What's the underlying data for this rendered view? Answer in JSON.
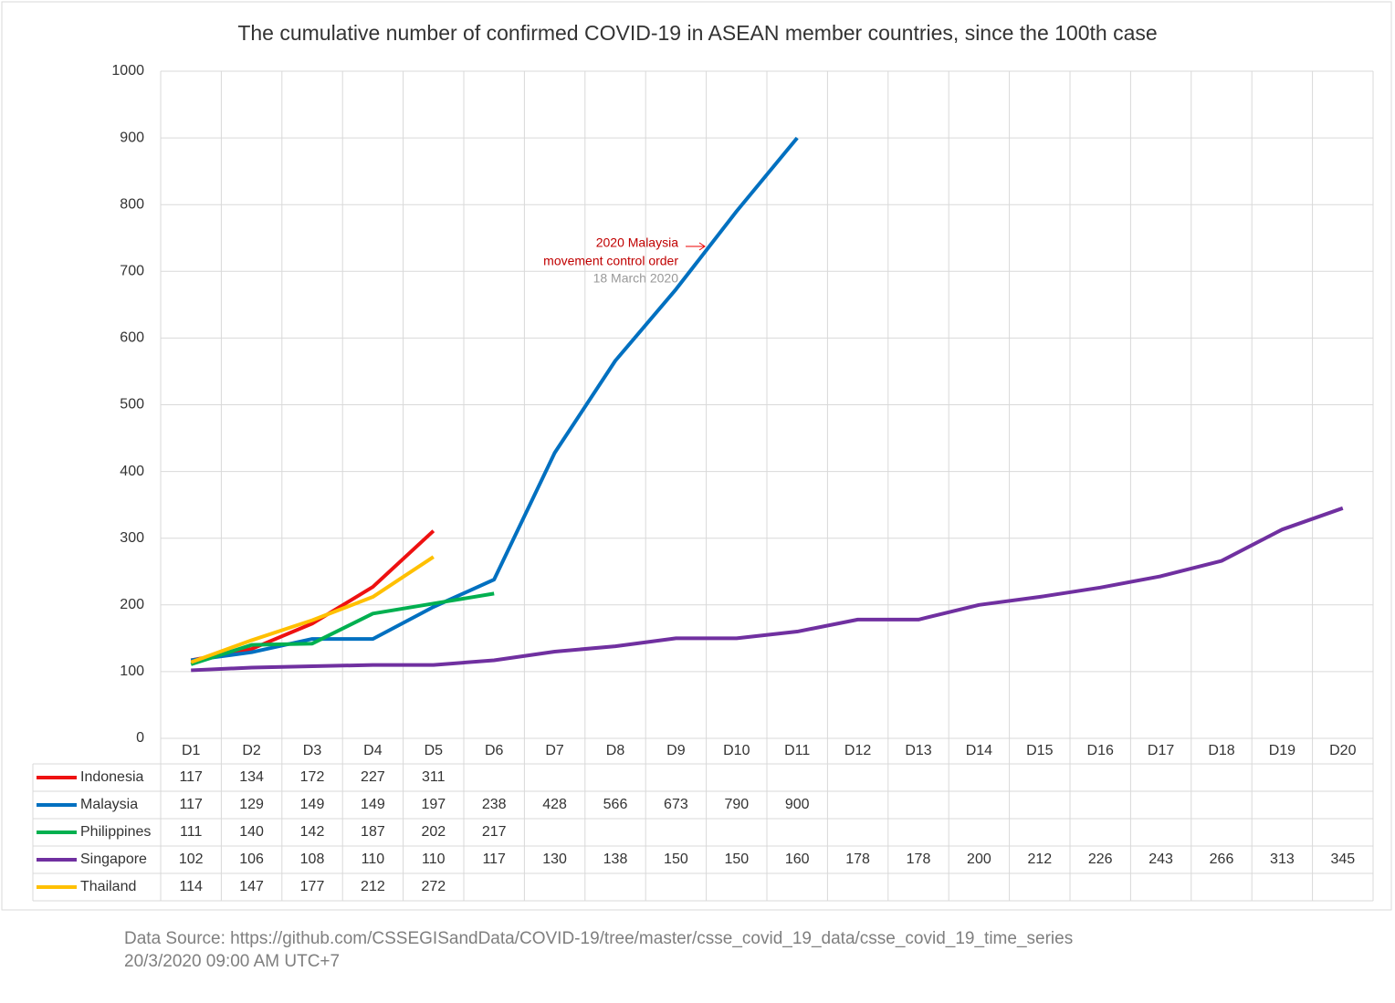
{
  "chart_data": {
    "type": "line",
    "title": "The cumulative number of confirmed COVID-19 in ASEAN member countries, since the 100th case",
    "categories": [
      "D1",
      "D2",
      "D3",
      "D4",
      "D5",
      "D6",
      "D7",
      "D8",
      "D9",
      "D10",
      "D11",
      "D12",
      "D13",
      "D14",
      "D15",
      "D16",
      "D17",
      "D18",
      "D19",
      "D20"
    ],
    "series": [
      {
        "name": "Indonesia",
        "color": "#ee1111",
        "values": [
          117,
          134,
          172,
          227,
          311,
          null,
          null,
          null,
          null,
          null,
          null,
          null,
          null,
          null,
          null,
          null,
          null,
          null,
          null,
          null
        ]
      },
      {
        "name": "Malaysia",
        "color": "#0070c0",
        "values": [
          117,
          129,
          149,
          149,
          197,
          238,
          428,
          566,
          673,
          790,
          900,
          null,
          null,
          null,
          null,
          null,
          null,
          null,
          null,
          null
        ]
      },
      {
        "name": "Philippines",
        "color": "#00b050",
        "values": [
          111,
          140,
          142,
          187,
          202,
          217,
          null,
          null,
          null,
          null,
          null,
          null,
          null,
          null,
          null,
          null,
          null,
          null,
          null,
          null
        ]
      },
      {
        "name": "Singapore",
        "color": "#7030a0",
        "values": [
          102,
          106,
          108,
          110,
          110,
          117,
          130,
          138,
          150,
          150,
          160,
          178,
          178,
          200,
          212,
          226,
          243,
          266,
          313,
          345
        ]
      },
      {
        "name": "Thailand",
        "color": "#ffc000",
        "values": [
          114,
          147,
          177,
          212,
          272,
          null,
          null,
          null,
          null,
          null,
          null,
          null,
          null,
          null,
          null,
          null,
          null,
          null,
          null,
          null
        ]
      }
    ],
    "ylim": [
      0,
      1000
    ],
    "yticks": [
      0,
      100,
      200,
      300,
      400,
      500,
      600,
      700,
      800,
      900,
      1000
    ],
    "grid": true,
    "annotations": [
      "2020 Malaysia",
      "movement control order",
      "18 March 2020"
    ],
    "source": "Data Source: https://github.com/CSSEGISandData/COVID-19/tree/master/csse_covid_19_data/csse_covid_19_time_series",
    "timestamp": "20/3/2020 09:00 AM UTC+7"
  }
}
